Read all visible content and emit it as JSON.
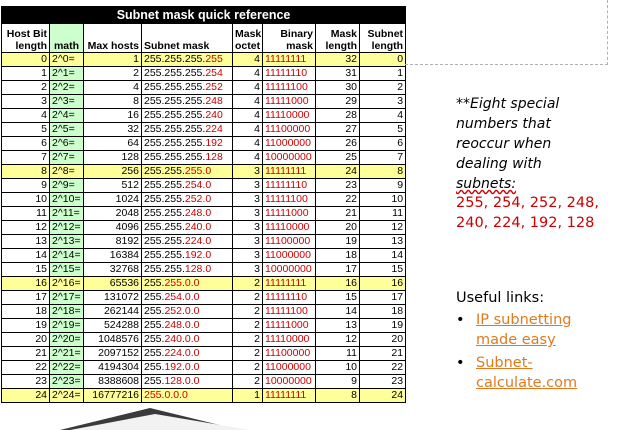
{
  "table": {
    "title": "Subnet mask quick reference",
    "headers": {
      "host_bit_length": "Host Bit length",
      "math": "math",
      "max_hosts": "Max hosts",
      "subnet_mask": "Subnet mask",
      "mask_octet": "Mask octet",
      "binary_mask": "Binary mask",
      "mask_length": "Mask length",
      "subnet_length": "Subnet length"
    },
    "rows": [
      {
        "bits": "0",
        "math": "2^0=",
        "hosts": "1",
        "mask_prefix": "255.255.255.",
        "mask_value": "255",
        "mask_suffix": "",
        "octet": "4",
        "binary": "11111111",
        "mlen": "32",
        "slen": "0",
        "hl": true
      },
      {
        "bits": "1",
        "math": "2^1=",
        "hosts": "2",
        "mask_prefix": "255.255.255.",
        "mask_value": "254",
        "mask_suffix": "",
        "octet": "4",
        "binary": "11111110",
        "mlen": "31",
        "slen": "1",
        "hl": false
      },
      {
        "bits": "2",
        "math": "2^2=",
        "hosts": "4",
        "mask_prefix": "255.255.255.",
        "mask_value": "252",
        "mask_suffix": "",
        "octet": "4",
        "binary": "11111100",
        "mlen": "30",
        "slen": "2",
        "hl": false
      },
      {
        "bits": "3",
        "math": "2^3=",
        "hosts": "8",
        "mask_prefix": "255.255.255.",
        "mask_value": "248",
        "mask_suffix": "",
        "octet": "4",
        "binary": "11111000",
        "mlen": "29",
        "slen": "3",
        "hl": false
      },
      {
        "bits": "4",
        "math": "2^4=",
        "hosts": "16",
        "mask_prefix": "255.255.255.",
        "mask_value": "240",
        "mask_suffix": "",
        "octet": "4",
        "binary": "11110000",
        "mlen": "28",
        "slen": "4",
        "hl": false
      },
      {
        "bits": "5",
        "math": "2^5=",
        "hosts": "32",
        "mask_prefix": "255.255.255.",
        "mask_value": "224",
        "mask_suffix": "",
        "octet": "4",
        "binary": "11100000",
        "mlen": "27",
        "slen": "5",
        "hl": false
      },
      {
        "bits": "6",
        "math": "2^6=",
        "hosts": "64",
        "mask_prefix": "255.255.255.",
        "mask_value": "192",
        "mask_suffix": "",
        "octet": "4",
        "binary": "11000000",
        "mlen": "26",
        "slen": "6",
        "hl": false
      },
      {
        "bits": "7",
        "math": "2^7=",
        "hosts": "128",
        "mask_prefix": "255.255.255.",
        "mask_value": "128",
        "mask_suffix": "",
        "octet": "4",
        "binary": "10000000",
        "mlen": "25",
        "slen": "7",
        "hl": false
      },
      {
        "bits": "8",
        "math": "2^8=",
        "hosts": "256",
        "mask_prefix": "255.255.",
        "mask_value": "255",
        "mask_suffix": ".0",
        "octet": "3",
        "binary": "11111111",
        "mlen": "24",
        "slen": "8",
        "hl": true
      },
      {
        "bits": "9",
        "math": "2^9=",
        "hosts": "512",
        "mask_prefix": "255.255.",
        "mask_value": "254",
        "mask_suffix": ".0",
        "octet": "3",
        "binary": "11111110",
        "mlen": "23",
        "slen": "9",
        "hl": false
      },
      {
        "bits": "10",
        "math": "2^10=",
        "hosts": "1024",
        "mask_prefix": "255.255.",
        "mask_value": "252",
        "mask_suffix": ".0",
        "octet": "3",
        "binary": "11111100",
        "mlen": "22",
        "slen": "10",
        "hl": false
      },
      {
        "bits": "11",
        "math": "2^11=",
        "hosts": "2048",
        "mask_prefix": "255.255.",
        "mask_value": "248",
        "mask_suffix": ".0",
        "octet": "3",
        "binary": "11111000",
        "mlen": "21",
        "slen": "11",
        "hl": false
      },
      {
        "bits": "12",
        "math": "2^12=",
        "hosts": "4096",
        "mask_prefix": "255.255.",
        "mask_value": "240",
        "mask_suffix": ".0",
        "octet": "3",
        "binary": "11110000",
        "mlen": "20",
        "slen": "12",
        "hl": false
      },
      {
        "bits": "13",
        "math": "2^13=",
        "hosts": "8192",
        "mask_prefix": "255.255.",
        "mask_value": "224",
        "mask_suffix": ".0",
        "octet": "3",
        "binary": "11100000",
        "mlen": "19",
        "slen": "13",
        "hl": false
      },
      {
        "bits": "14",
        "math": "2^14=",
        "hosts": "16384",
        "mask_prefix": "255.255.",
        "mask_value": "192",
        "mask_suffix": ".0",
        "octet": "3",
        "binary": "11000000",
        "mlen": "18",
        "slen": "14",
        "hl": false
      },
      {
        "bits": "15",
        "math": "2^15=",
        "hosts": "32768",
        "mask_prefix": "255.255.",
        "mask_value": "128",
        "mask_suffix": ".0",
        "octet": "3",
        "binary": "10000000",
        "mlen": "17",
        "slen": "15",
        "hl": false
      },
      {
        "bits": "16",
        "math": "2^16=",
        "hosts": "65536",
        "mask_prefix": "255.",
        "mask_value": "255",
        "mask_suffix": ".0.0",
        "octet": "2",
        "binary": "11111111",
        "mlen": "16",
        "slen": "16",
        "hl": true
      },
      {
        "bits": "17",
        "math": "2^17=",
        "hosts": "131072",
        "mask_prefix": "255.",
        "mask_value": "254",
        "mask_suffix": ".0.0",
        "octet": "2",
        "binary": "11111110",
        "mlen": "15",
        "slen": "17",
        "hl": false
      },
      {
        "bits": "18",
        "math": "2^18=",
        "hosts": "262144",
        "mask_prefix": "255.",
        "mask_value": "252",
        "mask_suffix": ".0.0",
        "octet": "2",
        "binary": "11111100",
        "mlen": "14",
        "slen": "18",
        "hl": false
      },
      {
        "bits": "19",
        "math": "2^19=",
        "hosts": "524288",
        "mask_prefix": "255.",
        "mask_value": "248",
        "mask_suffix": ".0.0",
        "octet": "2",
        "binary": "11111000",
        "mlen": "13",
        "slen": "19",
        "hl": false
      },
      {
        "bits": "20",
        "math": "2^20=",
        "hosts": "1048576",
        "mask_prefix": "255.",
        "mask_value": "240",
        "mask_suffix": ".0.0",
        "octet": "2",
        "binary": "11110000",
        "mlen": "12",
        "slen": "20",
        "hl": false
      },
      {
        "bits": "21",
        "math": "2^21=",
        "hosts": "2097152",
        "mask_prefix": "255.",
        "mask_value": "224",
        "mask_suffix": ".0.0",
        "octet": "2",
        "binary": "11100000",
        "mlen": "11",
        "slen": "21",
        "hl": false
      },
      {
        "bits": "22",
        "math": "2^22=",
        "hosts": "4194304",
        "mask_prefix": "255.",
        "mask_value": "192",
        "mask_suffix": ".0.0",
        "octet": "2",
        "binary": "11000000",
        "mlen": "10",
        "slen": "22",
        "hl": false
      },
      {
        "bits": "23",
        "math": "2^23=",
        "hosts": "8388608",
        "mask_prefix": "255.",
        "mask_value": "128",
        "mask_suffix": ".0.0",
        "octet": "2",
        "binary": "10000000",
        "mlen": "9",
        "slen": "23",
        "hl": false
      },
      {
        "bits": "24",
        "math": "2^24=",
        "hosts": "16777216",
        "mask_prefix": "",
        "mask_value": "255",
        "mask_suffix": ".0.0.0",
        "octet": "1",
        "binary": "11111111",
        "mlen": "8",
        "slen": "24",
        "hl": true
      }
    ]
  },
  "note": {
    "line1": "**Eight special numbers that reoccur when dealing with",
    "line2": "subnets:"
  },
  "special_numbers": "255, 254, 252, 248, 240, 224, 192, 128",
  "links": {
    "title": "Useful links:",
    "items": [
      {
        "label": "IP subnetting made easy"
      },
      {
        "label": "Subnet-calculate.com"
      }
    ]
  },
  "colors": {
    "highlight": "#ffff99",
    "math_column": "#ccffcc",
    "accent_red": "#cc0000",
    "link_orange": "#e07a1f"
  }
}
